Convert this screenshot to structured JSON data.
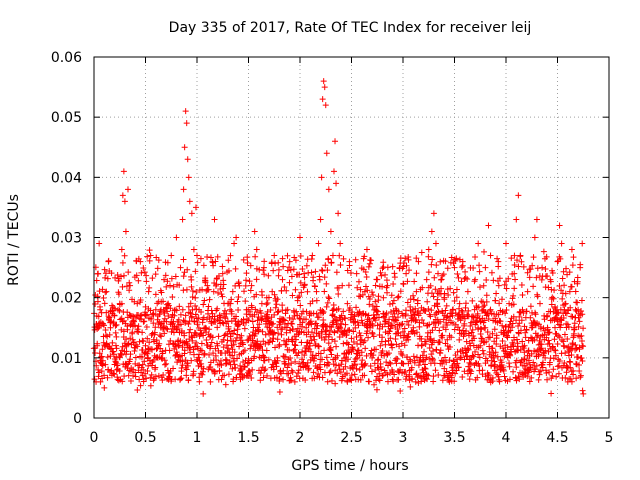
{
  "chart_data": {
    "type": "scatter",
    "title": "Day 335 of 2017, Rate Of TEC Index for receiver leij",
    "xlabel": "GPS time / hours",
    "ylabel": "ROTI / TECUs",
    "xlim": [
      0,
      5
    ],
    "ylim": [
      0,
      0.06
    ],
    "xticks": [
      "0",
      "0.5",
      "1",
      "1.5",
      "2",
      "2.5",
      "3",
      "3.5",
      "4",
      "4.5",
      "5"
    ],
    "yticks": [
      "0",
      "0.01",
      "0.02",
      "0.03",
      "0.04",
      "0.05",
      "0.06"
    ],
    "grid": true,
    "marker": "+",
    "color": "#ff0000",
    "data_x_range": [
      0.0,
      4.75
    ],
    "series": [
      {
        "name": "ROTI",
        "points": [
          [
            0.02,
            0.006
          ],
          [
            0.03,
            0.012
          ],
          [
            0.04,
            0.024
          ],
          [
            0.05,
            0.029
          ],
          [
            0.06,
            0.018
          ],
          [
            0.08,
            0.009
          ],
          [
            0.1,
            0.005
          ],
          [
            0.12,
            0.021
          ],
          [
            0.14,
            0.026
          ],
          [
            0.16,
            0.015
          ],
          [
            0.18,
            0.011
          ],
          [
            0.2,
            0.017
          ],
          [
            0.22,
            0.008
          ],
          [
            0.25,
            0.019
          ],
          [
            0.27,
            0.028
          ],
          [
            0.28,
            0.037
          ],
          [
            0.29,
            0.041
          ],
          [
            0.3,
            0.036
          ],
          [
            0.31,
            0.031
          ],
          [
            0.33,
            0.038
          ],
          [
            0.35,
            0.022
          ],
          [
            0.37,
            0.014
          ],
          [
            0.4,
            0.009
          ],
          [
            0.42,
            0.019
          ],
          [
            0.45,
            0.026
          ],
          [
            0.48,
            0.016
          ],
          [
            0.5,
            0.012
          ],
          [
            0.53,
            0.021
          ],
          [
            0.55,
            0.027
          ],
          [
            0.58,
            0.013
          ],
          [
            0.6,
            0.018
          ],
          [
            0.62,
            0.01
          ],
          [
            0.65,
            0.015
          ],
          [
            0.68,
            0.023
          ],
          [
            0.7,
            0.009
          ],
          [
            0.72,
            0.019
          ],
          [
            0.75,
            0.027
          ],
          [
            0.78,
            0.017
          ],
          [
            0.8,
            0.03
          ],
          [
            0.82,
            0.012
          ],
          [
            0.84,
            0.025
          ],
          [
            0.86,
            0.033
          ],
          [
            0.87,
            0.038
          ],
          [
            0.88,
            0.045
          ],
          [
            0.89,
            0.051
          ],
          [
            0.9,
            0.049
          ],
          [
            0.91,
            0.043
          ],
          [
            0.92,
            0.04
          ],
          [
            0.93,
            0.036
          ],
          [
            0.95,
            0.034
          ],
          [
            0.97,
            0.028
          ],
          [
            0.99,
            0.035
          ],
          [
            1.0,
            0.027
          ],
          [
            1.02,
            0.018
          ],
          [
            1.04,
            0.009
          ],
          [
            1.06,
            0.004
          ],
          [
            1.08,
            0.015
          ],
          [
            1.1,
            0.022
          ],
          [
            1.13,
            0.006
          ],
          [
            1.15,
            0.026
          ],
          [
            1.17,
            0.033
          ],
          [
            1.2,
            0.012
          ],
          [
            1.22,
            0.017
          ],
          [
            1.25,
            0.024
          ],
          [
            1.28,
            0.009
          ],
          [
            1.3,
            0.019
          ],
          [
            1.33,
            0.014
          ],
          [
            1.36,
            0.029
          ],
          [
            1.38,
            0.03
          ],
          [
            1.4,
            0.016
          ],
          [
            1.43,
            0.008
          ],
          [
            1.45,
            0.011
          ],
          [
            1.48,
            0.018
          ],
          [
            1.5,
            0.013
          ],
          [
            1.53,
            0.022
          ],
          [
            1.56,
            0.031
          ],
          [
            1.58,
            0.028
          ],
          [
            1.6,
            0.012
          ],
          [
            1.63,
            0.019
          ],
          [
            1.65,
            0.025
          ],
          [
            1.68,
            0.007
          ],
          [
            1.7,
            0.014
          ],
          [
            1.73,
            0.021
          ],
          [
            1.75,
            0.027
          ],
          [
            1.78,
            0.01
          ],
          [
            1.8,
            0.016
          ],
          [
            1.83,
            0.023
          ],
          [
            1.85,
            0.009
          ],
          [
            1.88,
            0.018
          ],
          [
            1.9,
            0.026
          ],
          [
            1.93,
            0.013
          ],
          [
            1.95,
            0.006
          ],
          [
            1.98,
            0.02
          ],
          [
            2.0,
            0.03
          ],
          [
            2.02,
            0.011
          ],
          [
            2.04,
            0.024
          ],
          [
            2.06,
            0.015
          ],
          [
            2.08,
            0.008
          ],
          [
            2.1,
            0.019
          ],
          [
            2.12,
            0.027
          ],
          [
            2.14,
            0.013
          ],
          [
            2.16,
            0.021
          ],
          [
            2.18,
            0.029
          ],
          [
            2.2,
            0.033
          ],
          [
            2.21,
            0.04
          ],
          [
            2.22,
            0.053
          ],
          [
            2.23,
            0.056
          ],
          [
            2.24,
            0.055
          ],
          [
            2.25,
            0.052
          ],
          [
            2.26,
            0.044
          ],
          [
            2.28,
            0.038
          ],
          [
            2.3,
            0.031
          ],
          [
            2.32,
            0.027
          ],
          [
            2.33,
            0.041
          ],
          [
            2.34,
            0.046
          ],
          [
            2.35,
            0.039
          ],
          [
            2.37,
            0.034
          ],
          [
            2.39,
            0.029
          ],
          [
            2.41,
            0.022
          ],
          [
            2.43,
            0.014
          ],
          [
            2.46,
            0.019
          ],
          [
            2.48,
            0.026
          ],
          [
            2.5,
            0.011
          ],
          [
            2.53,
            0.017
          ],
          [
            2.55,
            0.024
          ],
          [
            2.58,
            0.008
          ],
          [
            2.6,
            0.013
          ],
          [
            2.63,
            0.021
          ],
          [
            2.65,
            0.028
          ],
          [
            2.68,
            0.015
          ],
          [
            2.7,
            0.01
          ],
          [
            2.73,
            0.018
          ],
          [
            2.75,
            0.023
          ],
          [
            2.78,
            0.012
          ],
          [
            2.8,
            0.007
          ],
          [
            2.83,
            0.016
          ],
          [
            2.85,
            0.022
          ],
          [
            2.88,
            0.009
          ],
          [
            2.9,
            0.019
          ],
          [
            2.93,
            0.014
          ],
          [
            2.95,
            0.02
          ],
          [
            2.98,
            0.011
          ],
          [
            3.0,
            0.017
          ],
          [
            3.03,
            0.024
          ],
          [
            3.05,
            0.013
          ],
          [
            3.08,
            0.008
          ],
          [
            3.1,
            0.015
          ],
          [
            3.13,
            0.021
          ],
          [
            3.15,
            0.026
          ],
          [
            3.18,
            0.012
          ],
          [
            3.2,
            0.018
          ],
          [
            3.23,
            0.023
          ],
          [
            3.25,
            0.028
          ],
          [
            3.28,
            0.031
          ],
          [
            3.3,
            0.034
          ],
          [
            3.32,
            0.029
          ],
          [
            3.34,
            0.024
          ],
          [
            3.36,
            0.016
          ],
          [
            3.38,
            0.009
          ],
          [
            3.4,
            0.02
          ],
          [
            3.43,
            0.013
          ],
          [
            3.45,
            0.006
          ],
          [
            3.48,
            0.017
          ],
          [
            3.5,
            0.025
          ],
          [
            3.53,
            0.011
          ],
          [
            3.55,
            0.019
          ],
          [
            3.58,
            0.026
          ],
          [
            3.6,
            0.014
          ],
          [
            3.63,
            0.021
          ],
          [
            3.65,
            0.008
          ],
          [
            3.68,
            0.016
          ],
          [
            3.7,
            0.023
          ],
          [
            3.73,
            0.029
          ],
          [
            3.75,
            0.012
          ],
          [
            3.78,
            0.018
          ],
          [
            3.8,
            0.025
          ],
          [
            3.83,
            0.032
          ],
          [
            3.85,
            0.027
          ],
          [
            3.88,
            0.01
          ],
          [
            3.9,
            0.016
          ],
          [
            3.93,
            0.022
          ],
          [
            3.95,
            0.008
          ],
          [
            3.98,
            0.014
          ],
          [
            4.0,
            0.029
          ],
          [
            4.03,
            0.019
          ],
          [
            4.05,
            0.011
          ],
          [
            4.08,
            0.024
          ],
          [
            4.1,
            0.033
          ],
          [
            4.12,
            0.037
          ],
          [
            4.14,
            0.027
          ],
          [
            4.16,
            0.018
          ],
          [
            4.18,
            0.012
          ],
          [
            4.21,
            0.021
          ],
          [
            4.23,
            0.008
          ],
          [
            4.25,
            0.015
          ],
          [
            4.28,
            0.03
          ],
          [
            4.3,
            0.033
          ],
          [
            4.33,
            0.019
          ],
          [
            4.35,
            0.025
          ],
          [
            4.38,
            0.01
          ],
          [
            4.4,
            0.017
          ],
          [
            4.43,
            0.023
          ],
          [
            4.45,
            0.007
          ],
          [
            4.48,
            0.014
          ],
          [
            4.5,
            0.026
          ],
          [
            4.52,
            0.032
          ],
          [
            4.54,
            0.029
          ],
          [
            4.56,
            0.012
          ],
          [
            4.58,
            0.019
          ],
          [
            4.6,
            0.006
          ],
          [
            4.62,
            0.021
          ],
          [
            4.64,
            0.028
          ],
          [
            4.66,
            0.015
          ],
          [
            4.68,
            0.009
          ],
          [
            4.7,
            0.018
          ],
          [
            4.72,
            0.025
          ],
          [
            4.74,
            0.029
          ],
          [
            4.75,
            0.004
          ]
        ]
      }
    ]
  }
}
